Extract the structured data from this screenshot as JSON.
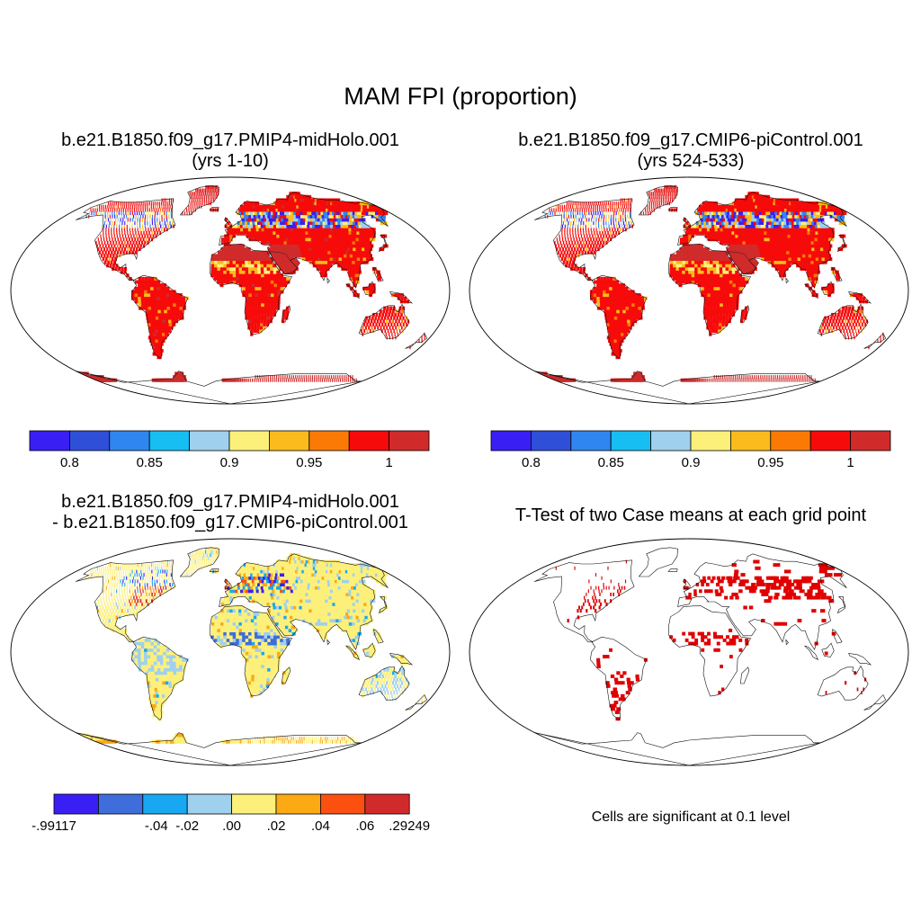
{
  "figure": {
    "title": "MAM FPI (proportion)",
    "panels": [
      {
        "id": "p1",
        "title_line1": "b.e21.B1850.f09_g17.PMIP4-midHolo.001",
        "title_line2": "(yrs 1-10)"
      },
      {
        "id": "p2",
        "title_line1": "b.e21.B1850.f09_g17.CMIP6-piControl.001",
        "title_line2": "(yrs 524-533)"
      },
      {
        "id": "p3",
        "title_line1": "b.e21.B1850.f09_g17.PMIP4-midHolo.001",
        "title_line2": "- b.e21.B1850.f09_g17.CMIP6-piControl.001"
      },
      {
        "id": "p4",
        "title_line1": "T-Test of two Case means at each grid point",
        "title_line2": ""
      }
    ],
    "note": "Cells are significant at 0.1 level"
  },
  "colorbars": {
    "absolute": {
      "colors": [
        "#3a1ff5",
        "#2f4fd9",
        "#2f86f0",
        "#16bef2",
        "#9fd0ee",
        "#fdf07a",
        "#fbbb1c",
        "#fb7a06",
        "#f70a0a",
        "#d12a2a"
      ],
      "ticks": [
        "0.8",
        "0.85",
        "0.9",
        "0.95",
        "1"
      ]
    },
    "difference": {
      "colors": [
        "#3a1ff5",
        "#3f6ddb",
        "#18a8f2",
        "#9fd0ee",
        "#fdf07a",
        "#fbaa14",
        "#fb5010",
        "#d12a2a"
      ],
      "ticks": [
        "-.99117",
        "-.04",
        "-.02",
        ".00",
        ".02",
        ".04",
        ".06",
        ".29249"
      ]
    }
  },
  "map_colors": {
    "land_dominant_absolute": "#f70a0a",
    "land_dominant_difference": "#fdf07a",
    "significant": "#e00000"
  }
}
